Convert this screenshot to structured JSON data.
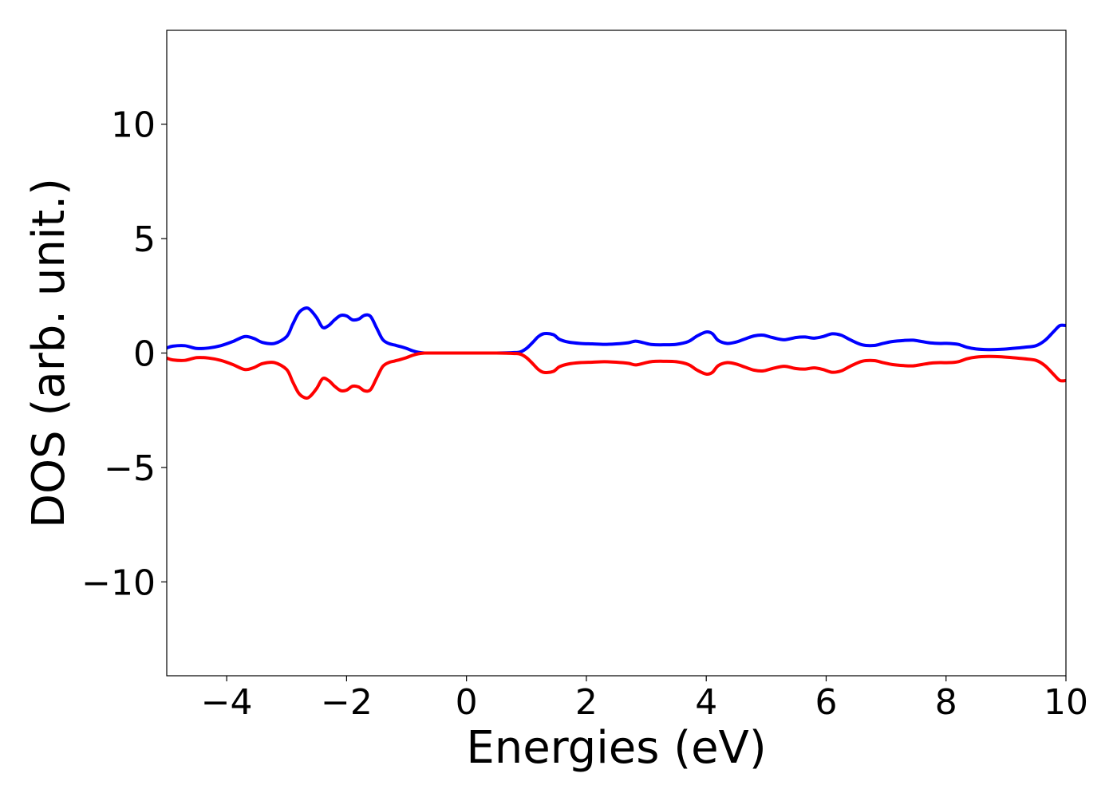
{
  "chart_data": {
    "type": "line",
    "xlabel": "Energies (eV)",
    "ylabel": "DOS (arb. unit.)",
    "xlim": [
      -5,
      10
    ],
    "ylim": [
      -14.1,
      14.1
    ],
    "xticks": [
      -4,
      -2,
      0,
      2,
      4,
      6,
      8,
      10
    ],
    "yticks": [
      -10,
      -5,
      0,
      5,
      10
    ],
    "xtick_labels": [
      "−4",
      "−2",
      "0",
      "2",
      "4",
      "6",
      "8",
      "10"
    ],
    "ytick_labels": [
      "−10",
      "−5",
      "0",
      "5",
      "10"
    ],
    "grid": false,
    "legend": "none",
    "series": [
      {
        "color": "#0000ff",
        "x": [
          -5.0,
          -4.9,
          -4.7,
          -4.5,
          -4.3,
          -4.1,
          -3.9,
          -3.7,
          -3.55,
          -3.4,
          -3.2,
          -3.0,
          -2.9,
          -2.8,
          -2.7,
          -2.62,
          -2.5,
          -2.4,
          -2.3,
          -2.2,
          -2.1,
          -2.0,
          -1.9,
          -1.8,
          -1.7,
          -1.6,
          -1.5,
          -1.4,
          -1.3,
          -1.2,
          -1.1,
          -1.0,
          -0.9,
          -0.8,
          -0.7,
          -0.6,
          -0.5,
          0.0,
          0.5,
          0.8,
          0.9,
          1.0,
          1.1,
          1.2,
          1.3,
          1.45,
          1.55,
          1.7,
          1.9,
          2.1,
          2.3,
          2.5,
          2.7,
          2.82,
          2.95,
          3.1,
          3.3,
          3.5,
          3.7,
          3.85,
          4.0,
          4.1,
          4.2,
          4.35,
          4.5,
          4.65,
          4.8,
          4.95,
          5.1,
          5.3,
          5.5,
          5.65,
          5.8,
          5.95,
          6.1,
          6.25,
          6.4,
          6.6,
          6.8,
          6.95,
          7.1,
          7.3,
          7.45,
          7.6,
          7.75,
          7.9,
          8.05,
          8.2,
          8.35,
          8.5,
          8.7,
          8.9,
          9.1,
          9.3,
          9.5,
          9.65,
          9.8,
          9.9,
          10.0
        ],
        "values": [
          0.22,
          0.3,
          0.32,
          0.2,
          0.22,
          0.32,
          0.5,
          0.72,
          0.64,
          0.46,
          0.42,
          0.72,
          1.25,
          1.75,
          1.95,
          1.92,
          1.55,
          1.12,
          1.2,
          1.45,
          1.64,
          1.62,
          1.45,
          1.48,
          1.65,
          1.6,
          1.1,
          0.6,
          0.42,
          0.35,
          0.28,
          0.2,
          0.1,
          0.03,
          0.0,
          0.0,
          0.0,
          0.0,
          0.0,
          0.02,
          0.05,
          0.2,
          0.45,
          0.72,
          0.85,
          0.8,
          0.6,
          0.48,
          0.42,
          0.4,
          0.38,
          0.4,
          0.45,
          0.52,
          0.45,
          0.37,
          0.36,
          0.38,
          0.5,
          0.75,
          0.92,
          0.85,
          0.55,
          0.42,
          0.48,
          0.62,
          0.75,
          0.78,
          0.68,
          0.58,
          0.68,
          0.7,
          0.65,
          0.72,
          0.84,
          0.78,
          0.58,
          0.36,
          0.33,
          0.42,
          0.5,
          0.55,
          0.56,
          0.5,
          0.44,
          0.42,
          0.42,
          0.38,
          0.25,
          0.18,
          0.15,
          0.16,
          0.2,
          0.25,
          0.32,
          0.55,
          0.95,
          1.2,
          1.2
        ]
      },
      {
        "color": "#ff0000",
        "x": [
          -5.0,
          -4.9,
          -4.7,
          -4.5,
          -4.3,
          -4.1,
          -3.9,
          -3.7,
          -3.55,
          -3.4,
          -3.2,
          -3.0,
          -2.9,
          -2.8,
          -2.7,
          -2.62,
          -2.5,
          -2.4,
          -2.3,
          -2.2,
          -2.1,
          -2.0,
          -1.9,
          -1.8,
          -1.7,
          -1.6,
          -1.5,
          -1.4,
          -1.3,
          -1.2,
          -1.1,
          -1.0,
          -0.9,
          -0.8,
          -0.7,
          -0.6,
          -0.5,
          0.0,
          0.5,
          0.8,
          0.9,
          1.0,
          1.1,
          1.2,
          1.3,
          1.45,
          1.55,
          1.7,
          1.9,
          2.1,
          2.3,
          2.5,
          2.7,
          2.82,
          2.95,
          3.1,
          3.3,
          3.5,
          3.7,
          3.85,
          4.0,
          4.1,
          4.2,
          4.35,
          4.5,
          4.65,
          4.8,
          4.95,
          5.1,
          5.3,
          5.5,
          5.65,
          5.8,
          5.95,
          6.1,
          6.25,
          6.4,
          6.6,
          6.8,
          6.95,
          7.1,
          7.3,
          7.45,
          7.6,
          7.75,
          7.9,
          8.05,
          8.2,
          8.35,
          8.5,
          8.7,
          8.9,
          9.1,
          9.3,
          9.5,
          9.65,
          9.8,
          9.9,
          10.0
        ],
        "values": [
          -0.22,
          -0.3,
          -0.32,
          -0.2,
          -0.22,
          -0.32,
          -0.5,
          -0.72,
          -0.64,
          -0.46,
          -0.42,
          -0.72,
          -1.25,
          -1.75,
          -1.95,
          -1.92,
          -1.55,
          -1.12,
          -1.2,
          -1.45,
          -1.64,
          -1.62,
          -1.45,
          -1.48,
          -1.65,
          -1.6,
          -1.1,
          -0.6,
          -0.42,
          -0.35,
          -0.28,
          -0.2,
          -0.1,
          -0.03,
          0.0,
          0.0,
          0.0,
          0.0,
          0.0,
          -0.02,
          -0.05,
          -0.2,
          -0.45,
          -0.72,
          -0.85,
          -0.8,
          -0.6,
          -0.48,
          -0.42,
          -0.4,
          -0.38,
          -0.4,
          -0.45,
          -0.52,
          -0.45,
          -0.37,
          -0.36,
          -0.38,
          -0.5,
          -0.75,
          -0.92,
          -0.85,
          -0.55,
          -0.42,
          -0.48,
          -0.62,
          -0.75,
          -0.78,
          -0.68,
          -0.58,
          -0.68,
          -0.7,
          -0.65,
          -0.72,
          -0.84,
          -0.78,
          -0.58,
          -0.36,
          -0.33,
          -0.42,
          -0.5,
          -0.55,
          -0.56,
          -0.5,
          -0.44,
          -0.42,
          -0.42,
          -0.38,
          -0.25,
          -0.18,
          -0.15,
          -0.16,
          -0.2,
          -0.25,
          -0.32,
          -0.55,
          -0.95,
          -1.2,
          -1.2
        ]
      }
    ]
  }
}
